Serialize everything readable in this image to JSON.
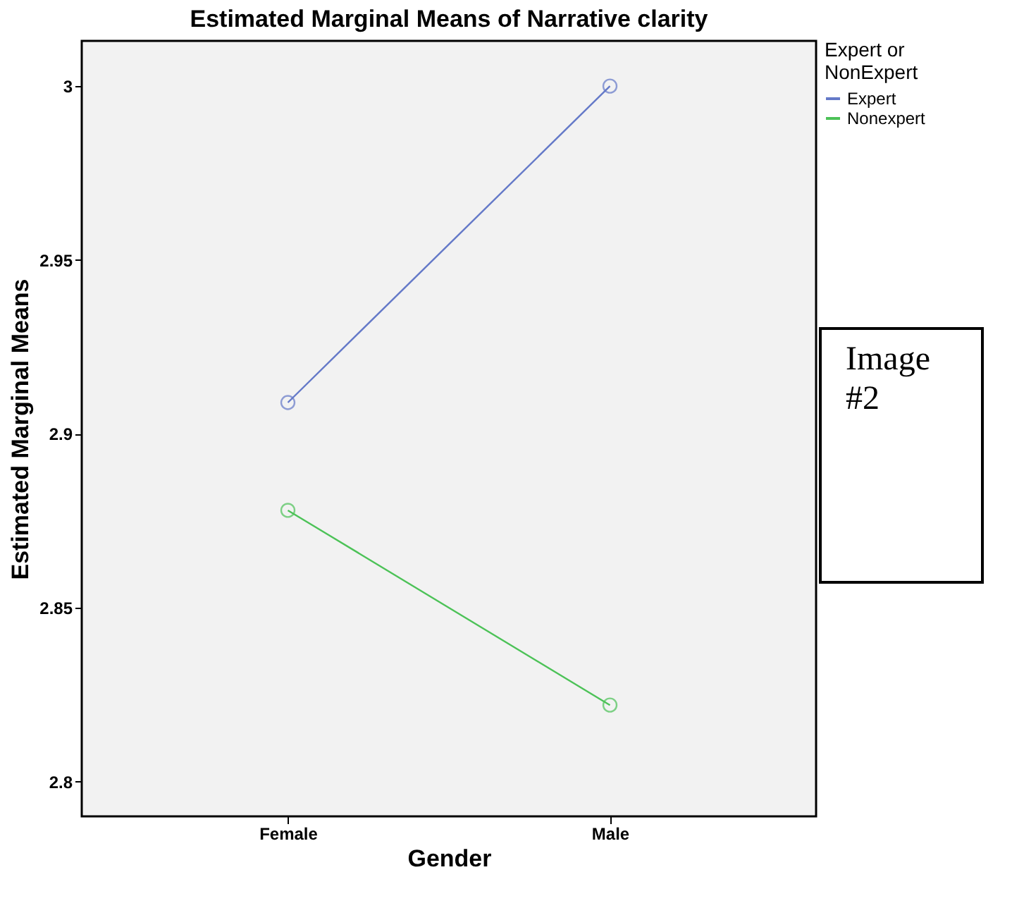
{
  "chart_data": {
    "type": "line",
    "title": "Estimated Marginal Means of Narrative clarity",
    "xlabel": "Gender",
    "ylabel": "Estimated Marginal Means",
    "legend_title": "Expert or NonExpert",
    "categories": [
      "Female",
      "Male"
    ],
    "series": [
      {
        "name": "Expert",
        "color": "#6479c8",
        "values": [
          2.909,
          3.0
        ]
      },
      {
        "name": "Nonexpert",
        "color": "#4cc257",
        "values": [
          2.878,
          2.822
        ]
      }
    ],
    "ylim": [
      2.79,
      3.013
    ],
    "yticks": [
      2.8,
      2.85,
      2.9,
      2.95,
      3
    ],
    "grid": false,
    "legend": "top right",
    "marker": "circle",
    "line_style": "solid",
    "annotations": [
      "Image #2"
    ]
  }
}
